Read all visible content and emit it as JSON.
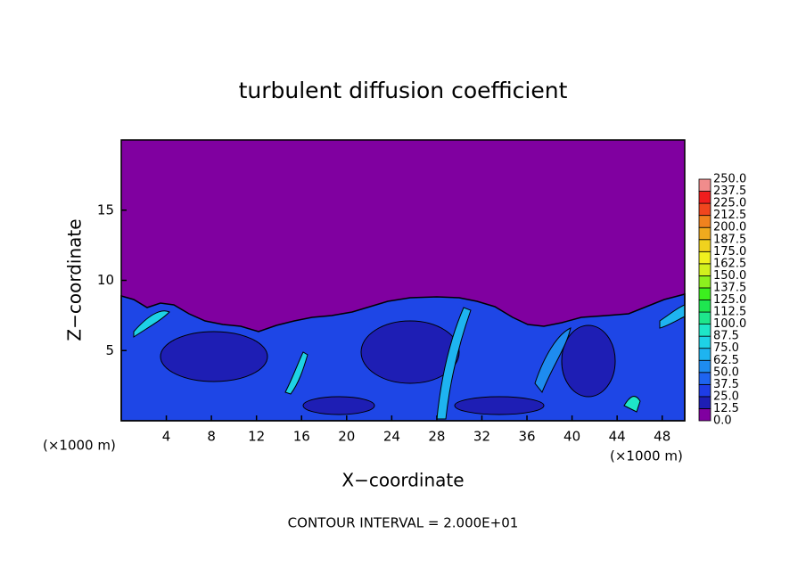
{
  "chart_data": {
    "type": "contour",
    "title": "turbulent diffusion coefficient",
    "x_label": "X−coordinate",
    "y_label": "Z−coordinate",
    "x_unit_left": "(×1000 m)",
    "x_unit_right": "(×1000 m)",
    "xlim": [
      0,
      50
    ],
    "xticks": [
      4,
      8,
      12,
      16,
      20,
      24,
      28,
      32,
      36,
      40,
      44,
      48
    ],
    "ylim": [
      0,
      20
    ],
    "yticks": [
      5,
      10,
      15
    ],
    "footnote": "CONTOUR INTERVAL = 2.000E+01",
    "colorbar": {
      "levels": [
        {
          "value": 0,
          "label": "0.0"
        },
        {
          "value": 12.5,
          "label": "12.5"
        },
        {
          "value": 25,
          "label": "25.0"
        },
        {
          "value": 37.5,
          "label": "37.5"
        },
        {
          "value": 50,
          "label": "50.0"
        },
        {
          "value": 62.5,
          "label": "62.5"
        },
        {
          "value": 75,
          "label": "75.0"
        },
        {
          "value": 87.5,
          "label": "87.5"
        },
        {
          "value": 100,
          "label": "100.0"
        },
        {
          "value": 112.5,
          "label": "112.5"
        },
        {
          "value": 125,
          "label": "125.0"
        },
        {
          "value": 137.5,
          "label": "137.5"
        },
        {
          "value": 150,
          "label": "150.0"
        },
        {
          "value": 162.5,
          "label": "162.5"
        },
        {
          "value": 175,
          "label": "175.0"
        },
        {
          "value": 187.5,
          "label": "187.5"
        },
        {
          "value": 200,
          "label": "200.0"
        },
        {
          "value": 212.5,
          "label": "212.5"
        },
        {
          "value": 225,
          "label": "225.0"
        },
        {
          "value": 237.5,
          "label": "237.5"
        },
        {
          "value": 250,
          "label": "250.0"
        }
      ],
      "colors": [
        "#8000a0",
        "#1e1eb4",
        "#1e3ce6",
        "#1e64f0",
        "#1e8cf0",
        "#1eb4f0",
        "#1ed2e6",
        "#1ee6c8",
        "#1ee68c",
        "#1ee650",
        "#3cf01e",
        "#8cf01e",
        "#d2f01e",
        "#f0f01e",
        "#f0d21e",
        "#f0aa1e",
        "#f0821e",
        "#f0461e",
        "#f01e1e",
        "#f08c8c"
      ]
    }
  }
}
